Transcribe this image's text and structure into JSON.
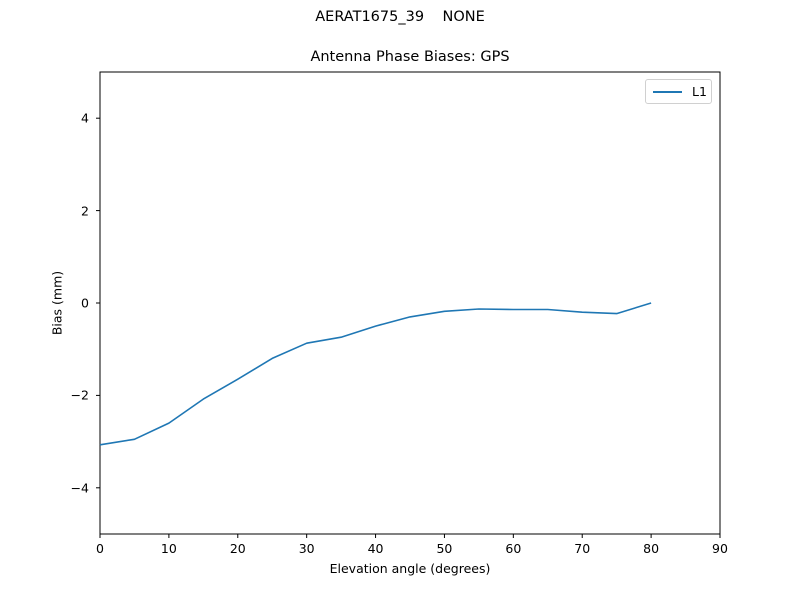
{
  "figure": {
    "suptitle": "AERAT1675_39    NONE"
  },
  "chart_data": {
    "type": "line",
    "title": "Antenna Phase Biases: GPS",
    "xlabel": "Elevation angle (degrees)",
    "ylabel": "Bias (mm)",
    "xlim": [
      0,
      90
    ],
    "ylim": [
      -5,
      5
    ],
    "xticks": [
      0,
      10,
      20,
      30,
      40,
      50,
      60,
      70,
      80,
      90
    ],
    "yticks": [
      -4,
      -2,
      0,
      2,
      4
    ],
    "ytick_labels": [
      "−4",
      "−2",
      "0",
      "2",
      "4"
    ],
    "grid": false,
    "legend_position": "upper right",
    "series": [
      {
        "name": "L1",
        "color": "#1f77b4",
        "x": [
          0,
          5,
          10,
          15,
          20,
          25,
          30,
          35,
          40,
          45,
          50,
          55,
          60,
          65,
          70,
          75,
          80
        ],
        "values": [
          -3.07,
          -2.95,
          -2.6,
          -2.08,
          -1.65,
          -1.2,
          -0.87,
          -0.74,
          -0.5,
          -0.3,
          -0.18,
          -0.13,
          -0.14,
          -0.14,
          -0.2,
          -0.23,
          0.0
        ]
      }
    ]
  }
}
